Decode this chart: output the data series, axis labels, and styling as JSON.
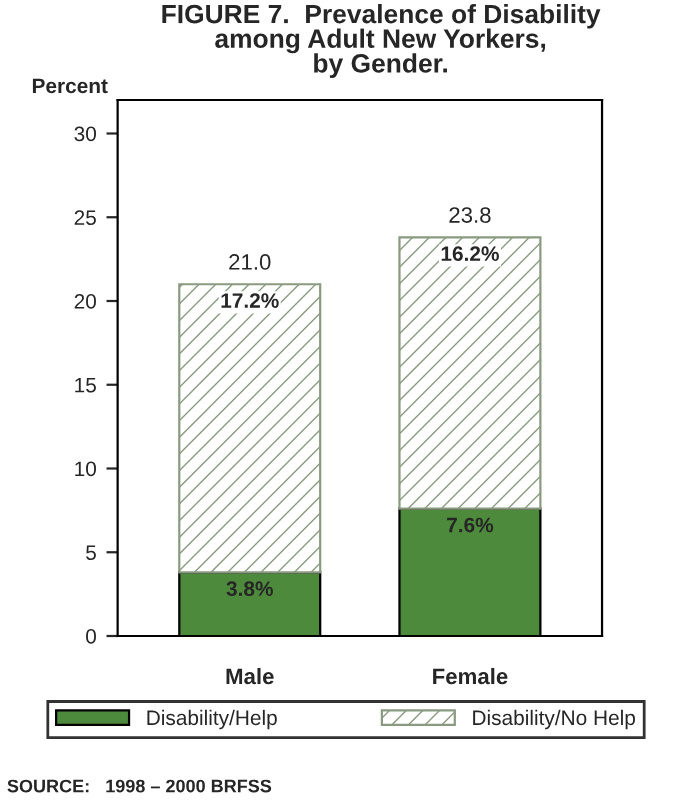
{
  "chart_data": {
    "type": "bar",
    "title": "FIGURE 7.  Prevalence of Disability\namong Adult New Yorkers,\nby Gender.",
    "ylabel": "Percent",
    "categories": [
      "Male",
      "Female"
    ],
    "stacked": true,
    "series": [
      {
        "name": "Disability/Help",
        "color": "#4e8a3c",
        "values": [
          3.8,
          7.6
        ],
        "value_labels": [
          "3.8%",
          "7.6%"
        ]
      },
      {
        "name": "Disability/No Help",
        "color": "#8a9a80",
        "values": [
          17.2,
          16.2
        ],
        "value_labels": [
          "17.2%",
          "16.2%"
        ]
      }
    ],
    "totals": [
      "21.0",
      "23.8"
    ],
    "ylim": [
      0,
      32
    ],
    "yticks": [
      0,
      5,
      10,
      15,
      20,
      25,
      30
    ],
    "grid": false,
    "legend": "bottom",
    "annotations": [
      "SOURCE:   1998 – 2000 BRFSS"
    ]
  }
}
